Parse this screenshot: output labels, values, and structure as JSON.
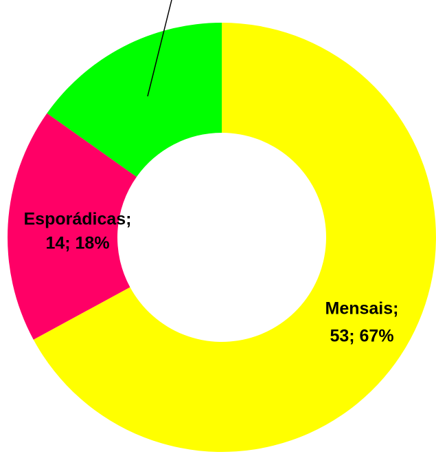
{
  "chart_data": {
    "type": "donut",
    "categories": [
      "Mensais;",
      "Esporádicas;",
      null
    ],
    "values": [
      53,
      14,
      12
    ],
    "value_labels": [
      "53; 67%",
      "14; 18%",
      null
    ],
    "colors": [
      "#ffff00",
      "#ff0066",
      "#00ff00"
    ]
  }
}
